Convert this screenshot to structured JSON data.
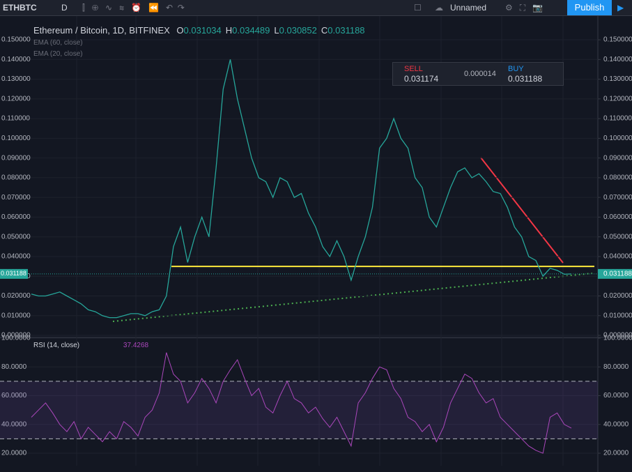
{
  "toolbar": {
    "symbol": "ETHBTC",
    "interval": "D",
    "layout_name": "Unnamed",
    "publish": "Publish"
  },
  "legend": {
    "title": "Ethereum / Bitcoin, 1D, BITFINEX",
    "ohlc": [
      {
        "label": "O",
        "value": "0.031034"
      },
      {
        "label": "H",
        "value": "0.034489"
      },
      {
        "label": "L",
        "value": "0.030852"
      },
      {
        "label": "C",
        "value": "0.031188"
      }
    ],
    "indicators": [
      "EMA (60, close)",
      "EMA (20, close)"
    ]
  },
  "trade_panel": {
    "sell_label": "SELL",
    "sell": "0.031174",
    "spread": "0.000014",
    "buy_label": "BUY",
    "buy": "0.031188"
  },
  "chart_data": [
    {
      "type": "line",
      "title": "Ethereum / Bitcoin",
      "color": "#26a69a",
      "values": [
        0.021,
        0.02,
        0.02,
        0.021,
        0.022,
        0.02,
        0.018,
        0.016,
        0.013,
        0.012,
        0.01,
        0.009,
        0.009,
        0.01,
        0.011,
        0.011,
        0.01,
        0.012,
        0.013,
        0.02,
        0.045,
        0.055,
        0.037,
        0.05,
        0.06,
        0.05,
        0.085,
        0.125,
        0.14,
        0.12,
        0.105,
        0.09,
        0.08,
        0.078,
        0.07,
        0.08,
        0.078,
        0.07,
        0.072,
        0.062,
        0.055,
        0.045,
        0.04,
        0.048,
        0.04,
        0.028,
        0.04,
        0.05,
        0.065,
        0.095,
        0.1,
        0.11,
        0.1,
        0.095,
        0.08,
        0.075,
        0.06,
        0.055,
        0.065,
        0.075,
        0.083,
        0.085,
        0.08,
        0.082,
        0.078,
        0.073,
        0.072,
        0.065,
        0.055,
        0.05,
        0.04,
        0.038,
        0.03,
        0.034,
        0.033,
        0.031,
        0.031188
      ],
      "ylim": [
        -0.0007,
        0.1578
      ],
      "yticks": [
        {
          "value": 0,
          "label": "0.000000"
        },
        {
          "value": 0.01,
          "label": "0.010000"
        },
        {
          "value": 0.02,
          "label": "0.020000"
        },
        {
          "value": 0.03,
          "label": "0.030000"
        },
        {
          "value": 0.04,
          "label": "0.040000"
        },
        {
          "value": 0.05,
          "label": "0.050000"
        },
        {
          "value": 0.06,
          "label": "0.060000"
        },
        {
          "value": 0.07,
          "label": "0.070000"
        },
        {
          "value": 0.08,
          "label": "0.080000"
        },
        {
          "value": 0.09,
          "label": "0.090000"
        },
        {
          "value": 0.1,
          "label": "0.100000"
        },
        {
          "value": 0.11,
          "label": "0.110000"
        },
        {
          "value": 0.12,
          "label": "0.120000"
        },
        {
          "value": 0.13,
          "label": "0.130000"
        },
        {
          "value": 0.14,
          "label": "0.140000"
        },
        {
          "value": 0.15,
          "label": "0.150000"
        }
      ],
      "level": {
        "value": 0.035,
        "color": "#ffeb3b"
      }
    },
    {
      "type": "line",
      "title": "RSI (14, close)",
      "color": "#ab47bc",
      "values": [
        45,
        50,
        55,
        48,
        40,
        35,
        42,
        30,
        38,
        33,
        28,
        35,
        30,
        42,
        38,
        32,
        45,
        50,
        62,
        90,
        75,
        70,
        55,
        62,
        72,
        65,
        55,
        70,
        78,
        85,
        72,
        60,
        65,
        52,
        48,
        60,
        70,
        58,
        55,
        48,
        52,
        44,
        38,
        45,
        35,
        25,
        55,
        62,
        72,
        80,
        78,
        65,
        58,
        45,
        42,
        35,
        40,
        28,
        38,
        55,
        65,
        75,
        72,
        62,
        55,
        58,
        45,
        40,
        35,
        30,
        25,
        22,
        20,
        45,
        48,
        40,
        37.4268
      ],
      "ylim": [
        11.3,
        100.5
      ],
      "yticks": [
        {
          "value": 20,
          "label": "20.0000"
        },
        {
          "value": 40,
          "label": "40.0000"
        },
        {
          "value": 60,
          "label": "60.0000"
        },
        {
          "value": 80,
          "label": "80.0000"
        },
        {
          "value": 100,
          "label": "100.0000"
        }
      ],
      "band": [
        30,
        70
      ]
    }
  ]
}
